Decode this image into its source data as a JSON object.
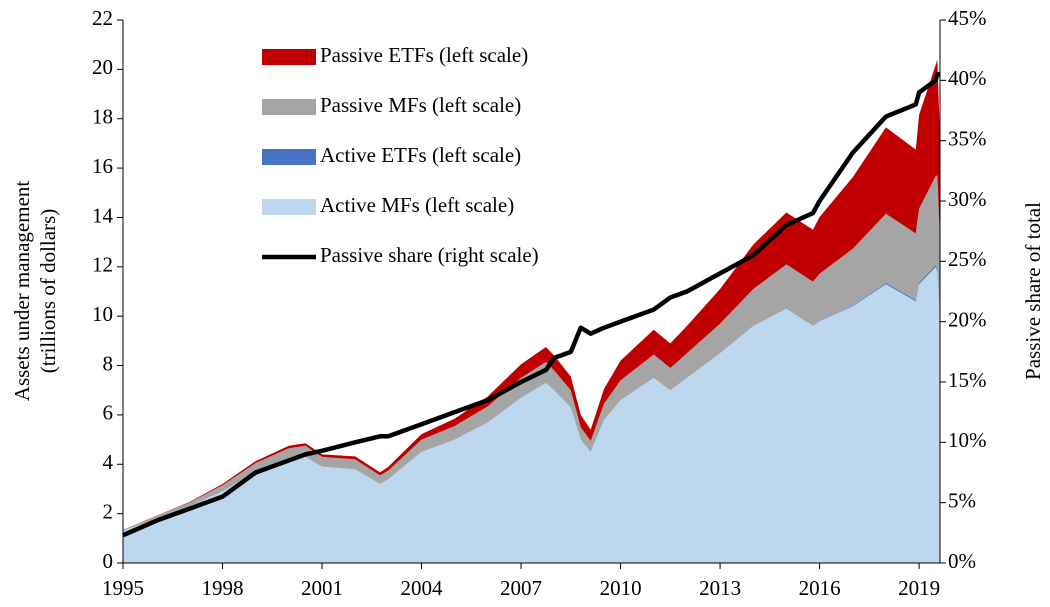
{
  "chart_data": {
    "type": "stacked-area-line",
    "y_label": [
      "Assets under management",
      "(trillions of dollars)"
    ],
    "y2_label": "Passive share of total",
    "x": [
      1995,
      1996,
      1997,
      1998,
      1999,
      2000,
      2000.5,
      2001,
      2002,
      2002.75,
      2003,
      2004,
      2005,
      2006,
      2007,
      2007.75,
      2008,
      2008.5,
      2008.8,
      2009.1,
      2009.5,
      2010,
      2011,
      2011.5,
      2012,
      2013,
      2014,
      2015,
      2015.8,
      2016,
      2017,
      2018,
      2018.9,
      2019,
      2019.5,
      2019.55,
      2019.63
    ],
    "series": [
      {
        "name": "Active MFs (left scale)",
        "color": "#bdd7ee",
        "values": [
          1.3,
          1.8,
          2.3,
          2.9,
          3.7,
          4.2,
          4.3,
          3.9,
          3.8,
          3.2,
          3.4,
          4.5,
          5.0,
          5.7,
          6.7,
          7.3,
          7.0,
          6.3,
          5.0,
          4.5,
          5.8,
          6.6,
          7.5,
          7.0,
          7.5,
          8.5,
          9.6,
          10.3,
          9.6,
          9.8,
          10.4,
          11.3,
          10.6,
          11.3,
          12.0,
          11.8,
          10.0
        ]
      },
      {
        "name": "Active ETFs (left scale)",
        "color": "#4472c4",
        "values": [
          0,
          0,
          0,
          0,
          0,
          0,
          0,
          0,
          0,
          0,
          0,
          0,
          0,
          0,
          0,
          0,
          0,
          0,
          0,
          0,
          0,
          0,
          0,
          0,
          0,
          0,
          0,
          0,
          0,
          0.02,
          0.03,
          0.05,
          0.05,
          0.06,
          0.08,
          0.1,
          0.1
        ]
      },
      {
        "name": "Passive MFs (left scale)",
        "color": "#a5a5a5",
        "values": [
          0.05,
          0.1,
          0.15,
          0.25,
          0.35,
          0.45,
          0.45,
          0.4,
          0.4,
          0.35,
          0.35,
          0.5,
          0.55,
          0.65,
          0.8,
          0.85,
          0.8,
          0.7,
          0.5,
          0.45,
          0.65,
          0.8,
          0.95,
          0.9,
          1.0,
          1.2,
          1.5,
          1.8,
          1.8,
          1.9,
          2.3,
          2.8,
          2.7,
          3.0,
          3.6,
          3.8,
          2.9
        ]
      },
      {
        "name": "Passive ETFs (left scale)",
        "color": "#c00000",
        "values": [
          0,
          0.01,
          0.02,
          0.05,
          0.08,
          0.1,
          0.1,
          0.1,
          0.12,
          0.12,
          0.15,
          0.22,
          0.3,
          0.4,
          0.55,
          0.6,
          0.6,
          0.55,
          0.5,
          0.45,
          0.6,
          0.8,
          1.0,
          1.0,
          1.1,
          1.4,
          1.8,
          2.1,
          2.1,
          2.3,
          2.9,
          3.5,
          3.4,
          3.8,
          4.5,
          4.7,
          4.2
        ]
      },
      {
        "name": "Passive share (right scale)",
        "color": "#000000",
        "axis": "y2",
        "values": [
          2.3,
          3.5,
          4.5,
          5.5,
          7.5,
          8.5,
          9,
          9.3,
          10,
          10.5,
          10.5,
          11.5,
          12.5,
          13.5,
          15,
          16,
          17,
          17.5,
          19.5,
          19,
          19.5,
          20,
          21,
          22,
          22.5,
          24,
          25.5,
          28,
          29,
          30,
          34,
          37,
          38,
          39,
          40,
          40.5,
          40.5
        ]
      }
    ],
    "legend_order": [
      3,
      2,
      1,
      0,
      4
    ],
    "xlim": [
      1995,
      2019.63
    ],
    "xticks": [
      1995,
      1998,
      2001,
      2004,
      2007,
      2010,
      2013,
      2016,
      2019
    ],
    "ylim": [
      0,
      22
    ],
    "yticks": [
      0,
      2,
      4,
      6,
      8,
      10,
      12,
      14,
      16,
      18,
      20,
      22
    ],
    "y2lim": [
      0,
      45
    ],
    "y2ticks": [
      {
        "value": 0,
        "label": "0%"
      },
      {
        "value": 5,
        "label": "5%"
      },
      {
        "value": 10,
        "label": "10%"
      },
      {
        "value": 15,
        "label": "15%"
      },
      {
        "value": 20,
        "label": "20%"
      },
      {
        "value": 25,
        "label": "25%"
      },
      {
        "value": 30,
        "label": "30%"
      },
      {
        "value": 35,
        "label": "35%"
      },
      {
        "value": 40,
        "label": "40%"
      },
      {
        "value": 45,
        "label": "45%"
      }
    ],
    "grid": false,
    "legend_position": "upper-left"
  }
}
